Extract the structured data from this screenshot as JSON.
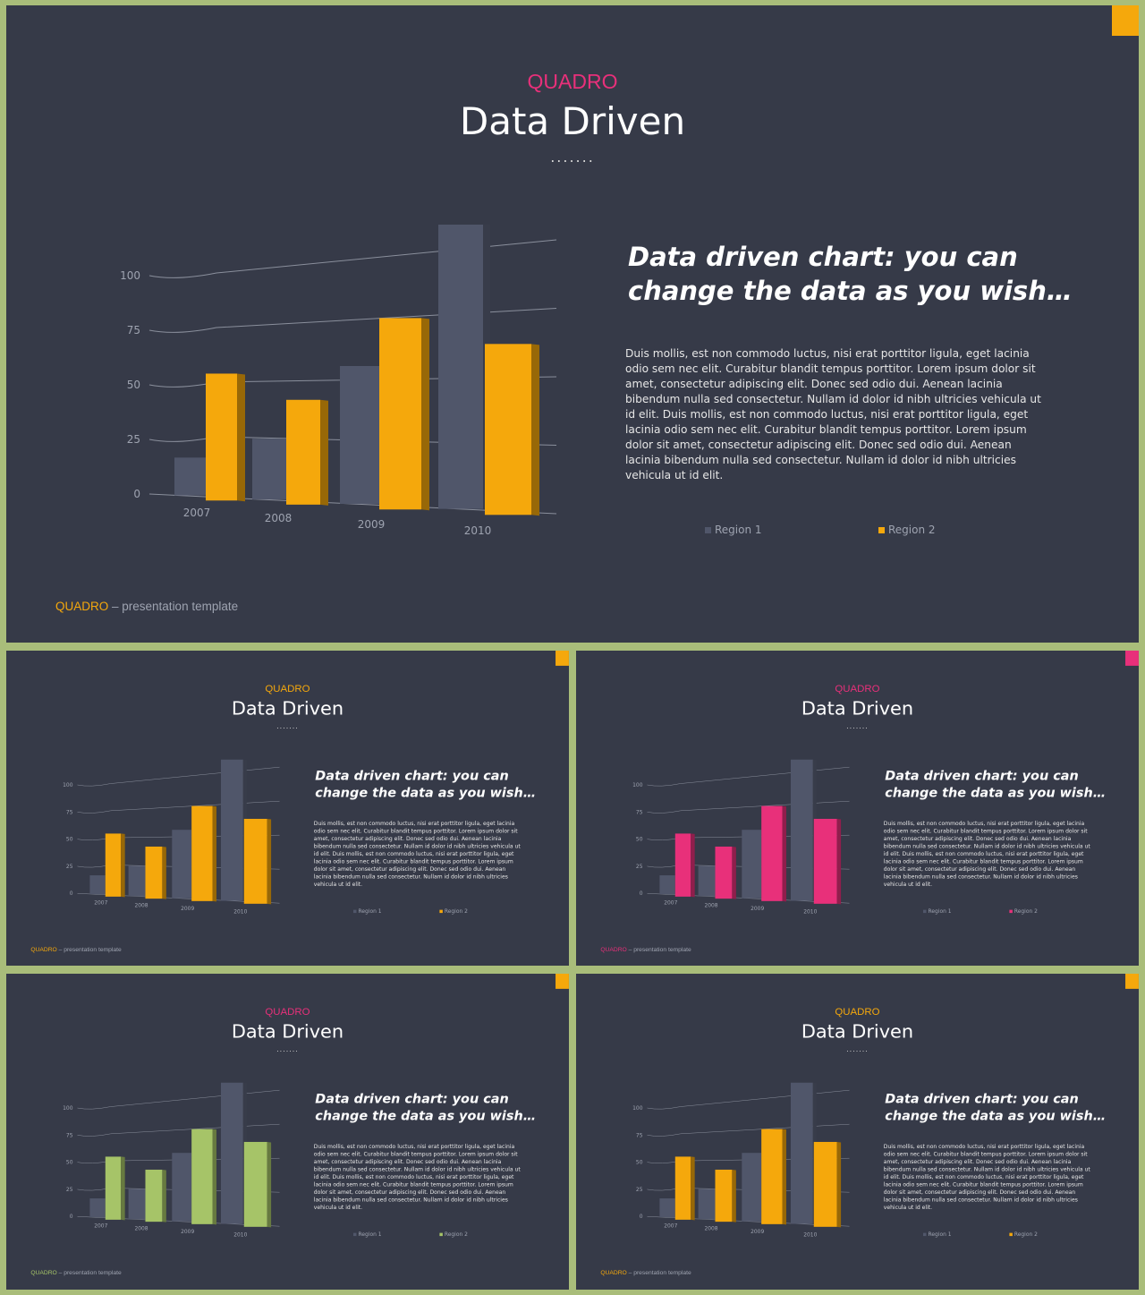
{
  "slides": [
    {
      "accent": "#f5a80c",
      "brand_color": "#e8307a",
      "corner_color": "#f5a80c"
    },
    {
      "accent": "#f5a80c",
      "brand_color": "#f5a80c",
      "corner_color": "#f5a80c"
    },
    {
      "accent": "#e8307a",
      "brand_color": "#e8307a",
      "corner_color": "#e8307a"
    },
    {
      "accent": "#a6c468",
      "brand_color": "#e8307a",
      "corner_color": "#f5a80c"
    },
    {
      "accent": "#f5a80c",
      "brand_color": "#f5a80c",
      "corner_color": "#f5a80c"
    }
  ],
  "content": {
    "brand": "QUADRO",
    "title": "Data Driven",
    "dots": ".......",
    "heading_line1": "Data driven chart: you can",
    "heading_line2": "change the data as you wish…",
    "body": "Duis mollis, est non commodo luctus, nisi erat porttitor ligula, eget lacinia odio sem nec elit. Curabitur blandit tempus porttitor. Lorem ipsum dolor sit amet, consectetur adipiscing elit. Donec sed odio dui. Aenean lacinia bibendum nulla sed consectetur.  Nullam id dolor id nibh ultricies vehicula ut id elit. Duis mollis, est non commodo luctus, nisi erat porttitor ligula, eget lacinia odio sem nec elit. Curabitur blandit tempus porttitor. Lorem ipsum dolor sit amet, consectetur adipiscing elit. Donec sed odio dui. Aenean lacinia bibendum nulla sed consectetur.  Nullam id dolor id nibh ultricies vehicula ut id elit.",
    "legend_region1": "Region 1",
    "legend_region2": "Region 2",
    "footer_brand": "QUADRO",
    "footer_rest": " – presentation template"
  },
  "chart_data": {
    "type": "bar",
    "categories": [
      "2007",
      "2008",
      "2009",
      "2010"
    ],
    "series": [
      {
        "name": "Region 1",
        "values": [
          17,
          26,
          56,
          110
        ],
        "color": "#50566a"
      },
      {
        "name": "Region 2",
        "values": [
          56,
          44,
          76,
          64
        ]
      }
    ],
    "yticks": [
      0,
      25,
      50,
      75,
      100
    ],
    "ylim": [
      0,
      110
    ],
    "grid": true,
    "legend": "bottom",
    "region2_default_color": "#a6c468"
  }
}
